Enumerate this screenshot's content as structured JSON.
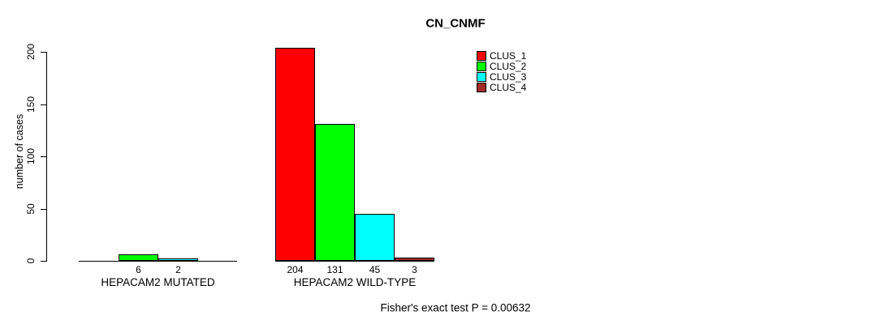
{
  "window": {
    "background": "#FFFFFF"
  },
  "chart_data": {
    "type": "bar",
    "title": "CN_CNMF",
    "ylabel": "number of cases",
    "xlabel": "",
    "ylim": [
      0,
      200
    ],
    "yticks": [
      0,
      50,
      100,
      150,
      200
    ],
    "grid": false,
    "legend_position": "top-right",
    "series": [
      {
        "name": "CLUS_1",
        "color": "#FF0000"
      },
      {
        "name": "CLUS_2",
        "color": "#00FF00"
      },
      {
        "name": "CLUS_3",
        "color": "#00FFFF"
      },
      {
        "name": "CLUS_4",
        "color": "#A52A2A"
      }
    ],
    "categories": [
      "HEPACAM2 MUTATED",
      "HEPACAM2 WILD-TYPE"
    ],
    "groups": [
      {
        "label": "HEPACAM2 MUTATED",
        "values": [
          0,
          6,
          2,
          0
        ],
        "bar_labels": [
          "",
          "6",
          "2",
          ""
        ]
      },
      {
        "label": "HEPACAM2 WILD-TYPE",
        "values": [
          204,
          131,
          45,
          3
        ],
        "bar_labels": [
          "204",
          "131",
          "45",
          "3"
        ]
      }
    ],
    "footnote": "Fisher's exact test P = 0.00632",
    "colors": {
      "axis": "#000000",
      "text": "#000000"
    }
  }
}
